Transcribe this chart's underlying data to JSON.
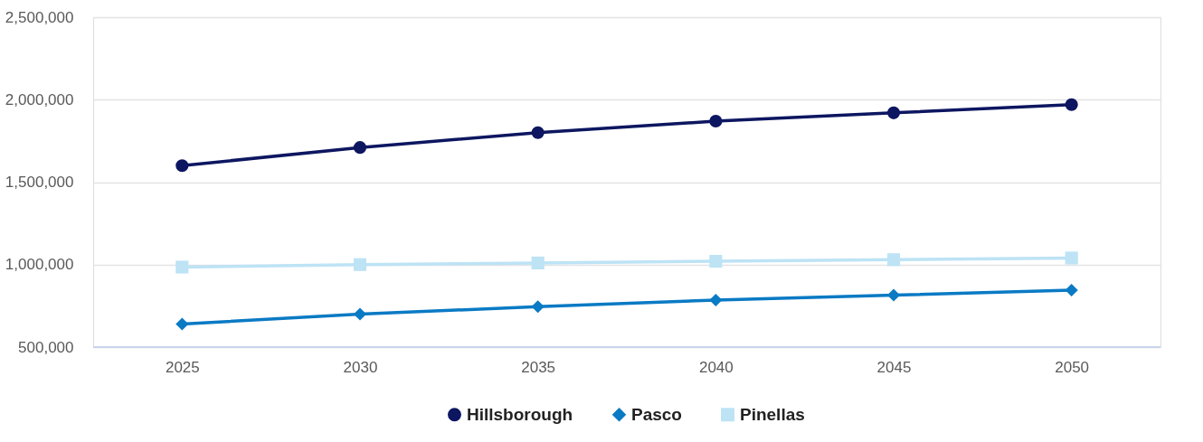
{
  "chart_data": {
    "type": "line",
    "categories": [
      "2025",
      "2030",
      "2035",
      "2040",
      "2045",
      "2050"
    ],
    "series": [
      {
        "name": "Hillsborough",
        "color": "#0d1660",
        "marker": "circle",
        "values": [
          1600000,
          1710000,
          1800000,
          1870000,
          1920000,
          1970000
        ]
      },
      {
        "name": "Pasco",
        "color": "#0a7ac4",
        "marker": "diamond",
        "values": [
          640000,
          700000,
          745000,
          785000,
          815000,
          845000
        ]
      },
      {
        "name": "Pinellas",
        "color": "#bde3f5",
        "marker": "square",
        "values": [
          985000,
          1000000,
          1010000,
          1020000,
          1030000,
          1040000
        ]
      }
    ],
    "ylim": [
      500000,
      2500000
    ],
    "yticks": [
      {
        "value": 500000,
        "label": "500,000"
      },
      {
        "value": 1000000,
        "label": "1,000,000"
      },
      {
        "value": 1500000,
        "label": "1,500,000"
      },
      {
        "value": 2000000,
        "label": "2,000,000"
      },
      {
        "value": 2500000,
        "label": "2,500,000"
      }
    ],
    "grid": "y",
    "legend": "bottom",
    "line_style": "solid"
  }
}
